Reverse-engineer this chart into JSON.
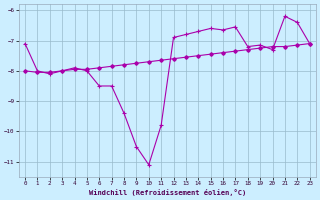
{
  "xlabel": "Windchill (Refroidissement éolien,°C)",
  "line1_x": [
    0,
    1,
    2,
    3,
    4,
    5,
    6,
    7,
    8,
    9,
    10,
    11,
    12,
    13,
    14,
    15,
    16,
    17,
    18,
    19,
    20,
    21,
    22,
    23
  ],
  "line1_y": [
    -7.1,
    -8.0,
    -8.1,
    -8.0,
    -7.9,
    -8.0,
    -8.5,
    -8.5,
    -9.4,
    -10.5,
    -11.1,
    -9.8,
    -6.9,
    -6.8,
    -6.7,
    -6.6,
    -6.65,
    -6.55,
    -7.2,
    -7.15,
    -7.3,
    -6.2,
    -6.4,
    -7.1
  ],
  "line2_x": [
    0,
    1,
    2,
    3,
    4,
    5,
    6,
    7,
    8,
    9,
    10,
    11,
    12,
    13,
    14,
    15,
    16,
    17,
    18,
    19,
    20,
    21,
    22,
    23
  ],
  "line2_y": [
    -8.0,
    -8.05,
    -8.05,
    -8.0,
    -7.95,
    -7.95,
    -7.9,
    -7.85,
    -7.8,
    -7.75,
    -7.7,
    -7.65,
    -7.6,
    -7.55,
    -7.5,
    -7.45,
    -7.4,
    -7.35,
    -7.3,
    -7.25,
    -7.2,
    -7.2,
    -7.15,
    -7.1
  ],
  "line_color": "#aa00aa",
  "bg_color": "#cceeff",
  "grid_color": "#99bbcc",
  "ylim": [
    -11.5,
    -5.8
  ],
  "xlim": [
    -0.5,
    23.5
  ],
  "yticks": [
    -11,
    -10,
    -9,
    -8,
    -7,
    -6
  ],
  "xticks": [
    0,
    1,
    2,
    3,
    4,
    5,
    6,
    7,
    8,
    9,
    10,
    11,
    12,
    13,
    14,
    15,
    16,
    17,
    18,
    19,
    20,
    21,
    22,
    23
  ]
}
